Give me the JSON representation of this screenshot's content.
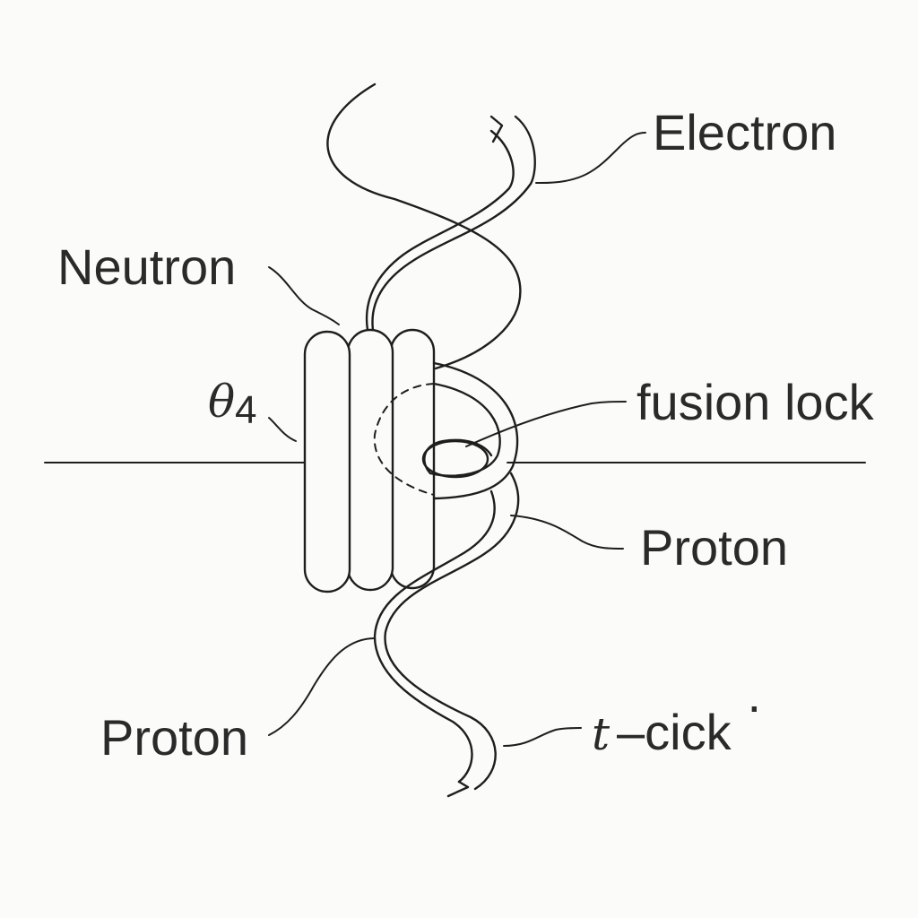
{
  "labels": {
    "electron": "Electron",
    "neutron": "Neutron",
    "theta_symbol": "θ",
    "theta_subscript": "4",
    "fusion_lock": "fusion lock",
    "proton_right": "Proton",
    "proton_left": "Proton",
    "tick_symbol": "t",
    "tick_text": "–cick",
    "tick_mark": "·"
  },
  "colors": {
    "ink": "#1e1e1e",
    "background": "#fbfbf9"
  }
}
